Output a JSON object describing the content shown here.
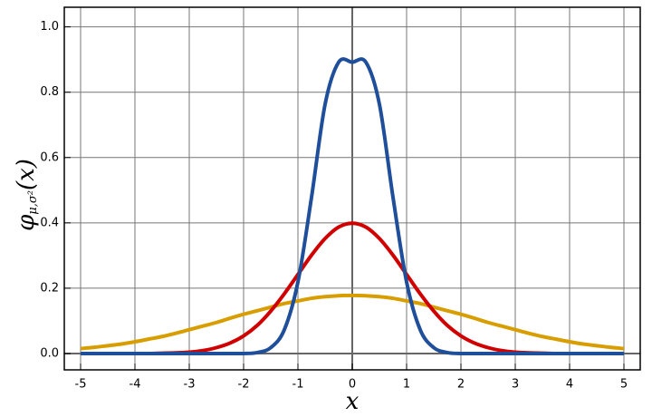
{
  "chart_data": {
    "type": "line",
    "x_label": "x",
    "y_label_main": "φ",
    "y_label_sub": "μ,σ²",
    "y_label_arg": "(x)",
    "x": [
      -5,
      -4.75,
      -4.5,
      -4.25,
      -4,
      -3.75,
      -3.5,
      -3.25,
      -3,
      -2.75,
      -2.5,
      -2.25,
      -2,
      -1.75,
      -1.5,
      -1.25,
      -1,
      -0.75,
      -0.5,
      -0.25,
      0,
      0.25,
      0.5,
      0.75,
      1,
      1.25,
      1.5,
      1.75,
      2,
      2.25,
      2.5,
      2.75,
      3,
      3.25,
      3.5,
      3.75,
      4,
      4.25,
      4.5,
      4.75,
      5
    ],
    "series": [
      {
        "color": "#d89e00",
        "values": [
          0.015,
          0.019,
          0.024,
          0.029,
          0.036,
          0.044,
          0.052,
          0.062,
          0.073,
          0.084,
          0.095,
          0.108,
          0.12,
          0.131,
          0.142,
          0.153,
          0.161,
          0.169,
          0.174,
          0.177,
          0.178,
          0.177,
          0.174,
          0.169,
          0.161,
          0.153,
          0.142,
          0.131,
          0.12,
          0.108,
          0.095,
          0.084,
          0.073,
          0.062,
          0.052,
          0.044,
          0.036,
          0.029,
          0.024,
          0.019,
          0.015
        ]
      },
      {
        "color": "#d00000",
        "values": [
          0,
          0,
          0,
          0,
          0,
          0,
          0.001,
          0.002,
          0.004,
          0.009,
          0.018,
          0.032,
          0.054,
          0.086,
          0.13,
          0.183,
          0.242,
          0.301,
          0.352,
          0.387,
          0.399,
          0.387,
          0.352,
          0.301,
          0.242,
          0.183,
          0.13,
          0.086,
          0.054,
          0.032,
          0.018,
          0.009,
          0.004,
          0.002,
          0.001,
          0,
          0,
          0,
          0,
          0,
          0
        ]
      },
      {
        "color": "#1f4e9a",
        "values": [
          0,
          0,
          0,
          0,
          0,
          0,
          0,
          0,
          0,
          0,
          0,
          0,
          0,
          0.003,
          0.018,
          0.073,
          0.219,
          0.478,
          0.763,
          0.892,
          0.892,
          0.892,
          0.763,
          0.478,
          0.219,
          0.073,
          0.018,
          0.003,
          0,
          0,
          0,
          0,
          0,
          0,
          0,
          0,
          0,
          0,
          0,
          0,
          0
        ]
      }
    ],
    "xlim": [
      -5.3,
      5.3
    ],
    "ylim": [
      -0.05,
      1.06
    ],
    "xticks": [
      -5,
      -4,
      -3,
      -2,
      -1,
      0,
      1,
      2,
      3,
      4,
      5
    ],
    "yticks": [
      {
        "value": 0,
        "label": "0.0"
      },
      0.2,
      0.4,
      0.6,
      0.8,
      {
        "value": 1,
        "label": "1.0"
      }
    ],
    "grid": true
  }
}
